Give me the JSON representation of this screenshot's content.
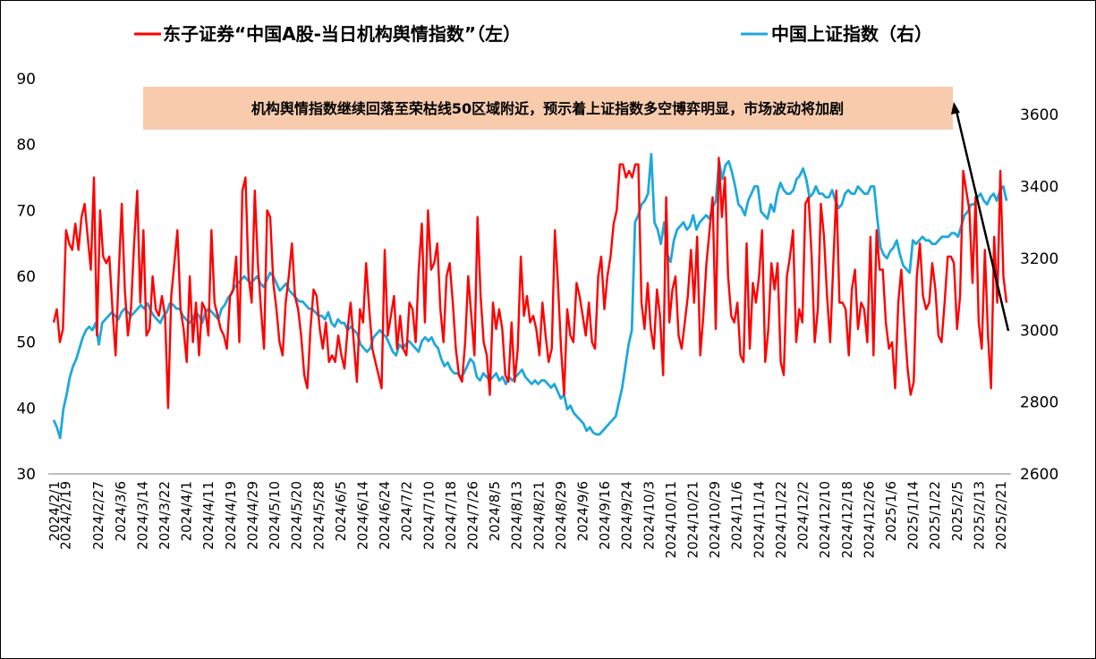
{
  "chart_data": {
    "type": "line",
    "legend": {
      "placement": "top"
    },
    "grid": false,
    "axes": {
      "y_left": {
        "min": 30,
        "max": 90,
        "ticks": [
          30,
          40,
          50,
          60,
          70,
          80,
          90
        ]
      },
      "y_right": {
        "min": 2600,
        "max": 3700,
        "ticks": [
          2600,
          2800,
          3000,
          3200,
          3400,
          3600
        ]
      }
    },
    "annotation": {
      "text": "机构舆情指数继续回落至荣枯线50区域附近，预示着上证指数多空博弈明显，市场波动将加剧",
      "fill": "#F8CBAD"
    },
    "x_tick_labels": [
      "2024/2/1",
      "2024/2/19",
      "2024/2/27",
      "2024/3/6",
      "2024/3/14",
      "2024/3/22",
      "2024/4/1",
      "2024/4/11",
      "2024/4/19",
      "2024/4/29",
      "2024/5/10",
      "2024/5/20",
      "2024/5/28",
      "2024/6/5",
      "2024/6/14",
      "2024/6/24",
      "2024/7/2",
      "2024/7/10",
      "2024/7/18",
      "2024/7/26",
      "2024/8/5",
      "2024/8/13",
      "2024/8/21",
      "2024/8/29",
      "2024/9/6",
      "2024/9/16",
      "2024/9/24",
      "2024/10/3",
      "2024/10/11",
      "2024/10/21",
      "2024/10/29",
      "2024/11/6",
      "2024/11/14",
      "2024/11/22",
      "2024/12/2",
      "2024/12/10",
      "2024/12/18",
      "2024/12/26",
      "2025/1/6",
      "2025/1/14",
      "2025/1/22",
      "2025/2/5",
      "2025/2/13",
      "2025/2/21"
    ],
    "series": [
      {
        "name": "东子证券“中国A股-当日机构舆情指数”（左）",
        "axis": "left",
        "color": "#FF0000",
        "values": [
          53,
          55,
          50,
          52,
          67,
          65,
          64,
          68,
          64,
          69,
          71,
          66,
          61,
          75,
          51,
          70,
          63,
          62,
          63,
          55,
          48,
          60,
          71,
          58,
          51,
          55,
          65,
          73,
          56,
          67,
          51,
          52,
          60,
          55,
          54,
          57,
          54,
          40,
          57,
          62,
          67,
          55,
          52,
          47,
          60,
          50,
          56,
          48,
          56,
          55,
          51,
          67,
          56,
          54,
          52,
          51,
          49,
          57,
          58,
          63,
          50,
          73,
          75,
          60,
          56,
          73,
          62,
          55,
          49,
          70,
          69,
          59,
          55,
          50,
          48,
          56,
          60,
          65,
          57,
          55,
          51,
          45,
          43,
          52,
          58,
          57,
          52,
          49,
          53,
          47,
          48,
          47,
          51,
          48,
          46,
          52,
          56,
          50,
          44,
          55,
          53,
          62,
          55,
          49,
          47,
          45,
          43,
          64,
          51,
          54,
          57,
          49,
          54,
          49,
          48,
          56,
          55,
          50,
          61,
          68,
          53,
          70,
          61,
          62,
          65,
          55,
          50,
          60,
          62,
          56,
          49,
          45,
          44,
          50,
          60,
          54,
          48,
          69,
          57,
          50,
          48,
          42,
          56,
          52,
          55,
          52,
          45,
          44,
          53,
          44,
          49,
          63,
          54,
          57,
          53,
          54,
          52,
          48,
          56,
          51,
          47,
          49,
          67,
          59,
          49,
          42,
          55,
          51,
          50,
          59,
          57,
          54,
          51,
          56,
          50,
          49,
          60,
          63,
          55,
          60,
          63,
          68,
          70,
          77,
          77,
          75,
          76,
          75,
          77,
          77,
          56,
          52,
          59,
          52,
          49,
          58,
          54,
          45,
          72,
          53,
          58,
          60,
          51,
          49,
          53,
          57,
          64,
          56,
          66,
          48,
          54,
          62,
          67,
          72,
          52,
          78,
          69,
          75,
          60,
          54,
          53,
          56,
          48,
          47,
          65,
          49,
          59,
          56,
          60,
          67,
          47,
          52,
          62,
          58,
          62,
          47,
          45,
          60,
          63,
          67,
          50,
          55,
          53,
          71,
          72,
          63,
          50,
          55,
          71,
          66,
          57,
          50,
          62,
          73,
          56,
          56,
          55,
          48,
          58,
          61,
          52,
          56,
          55,
          50,
          66,
          48,
          67,
          61,
          61,
          53,
          49,
          50,
          43,
          56,
          61,
          53,
          46,
          42,
          44,
          60,
          65,
          57,
          55,
          56,
          62,
          58,
          51,
          50,
          56,
          63,
          63,
          62,
          52,
          57,
          76,
          73,
          70,
          59,
          72,
          53,
          49,
          64,
          51,
          43,
          66,
          56,
          76,
          60,
          56
        ]
      },
      {
        "name": "中国上证指数（右）",
        "axis": "right",
        "color": "#1FA8DC",
        "values": [
          2750,
          2730,
          2700,
          2780,
          2820,
          2870,
          2900,
          2920,
          2950,
          2980,
          3000,
          3010,
          3000,
          3020,
          2960,
          3020,
          3030,
          3040,
          3050,
          3040,
          3030,
          3050,
          3060,
          3050,
          3040,
          3050,
          3060,
          3070,
          3060,
          3075,
          3055,
          3040,
          3030,
          3020,
          3040,
          3050,
          3075,
          3070,
          3060,
          3060,
          3040,
          3030,
          3020,
          3030,
          3050,
          3040,
          3020,
          3050,
          3060,
          3050,
          3040,
          3030,
          3060,
          3070,
          3090,
          3100,
          3120,
          3130,
          3140,
          3150,
          3140,
          3130,
          3140,
          3150,
          3130,
          3120,
          3140,
          3160,
          3150,
          3130,
          3110,
          3120,
          3130,
          3110,
          3100,
          3090,
          3080,
          3080,
          3070,
          3060,
          3060,
          3050,
          3040,
          3040,
          3030,
          3050,
          3020,
          3010,
          3030,
          3020,
          3020,
          3000,
          3010,
          3000,
          2990,
          2960,
          2950,
          2940,
          2950,
          2980,
          2990,
          3000,
          2990,
          2980,
          2960,
          2940,
          2930,
          2960,
          2950,
          2960,
          2970,
          2960,
          2950,
          2940,
          2970,
          2980,
          2970,
          2980,
          2960,
          2950,
          2920,
          2900,
          2910,
          2890,
          2880,
          2880,
          2870,
          2880,
          2900,
          2920,
          2910,
          2870,
          2860,
          2880,
          2870,
          2860,
          2870,
          2880,
          2860,
          2870,
          2850,
          2870,
          2860,
          2870,
          2880,
          2890,
          2870,
          2860,
          2850,
          2860,
          2850,
          2860,
          2860,
          2850,
          2840,
          2850,
          2830,
          2810,
          2820,
          2780,
          2790,
          2770,
          2760,
          2750,
          2740,
          2720,
          2730,
          2715,
          2710,
          2710,
          2720,
          2730,
          2740,
          2750,
          2760,
          2800,
          2840,
          2900,
          2960,
          3000,
          3300,
          3320,
          3350,
          3360,
          3380,
          3490,
          3300,
          3280,
          3240,
          3300,
          3210,
          3190,
          3250,
          3280,
          3290,
          3300,
          3280,
          3290,
          3320,
          3280,
          3300,
          3310,
          3320,
          3310,
          3340,
          3360,
          3470,
          3420,
          3460,
          3470,
          3440,
          3400,
          3350,
          3340,
          3320,
          3360,
          3380,
          3400,
          3400,
          3330,
          3320,
          3310,
          3350,
          3330,
          3380,
          3410,
          3390,
          3380,
          3380,
          3390,
          3420,
          3430,
          3450,
          3420,
          3370,
          3380,
          3400,
          3380,
          3380,
          3370,
          3370,
          3390,
          3360,
          3340,
          3350,
          3380,
          3390,
          3380,
          3380,
          3400,
          3390,
          3380,
          3380,
          3400,
          3400,
          3310,
          3230,
          3210,
          3200,
          3220,
          3230,
          3250,
          3210,
          3180,
          3170,
          3160,
          3250,
          3240,
          3250,
          3260,
          3250,
          3250,
          3240,
          3240,
          3250,
          3260,
          3260,
          3260,
          3270,
          3270,
          3260,
          3290,
          3320,
          3330,
          3350,
          3350,
          3370,
          3380,
          3360,
          3350,
          3370,
          3380,
          3360,
          3390,
          3400,
          3360
        ]
      }
    ]
  }
}
